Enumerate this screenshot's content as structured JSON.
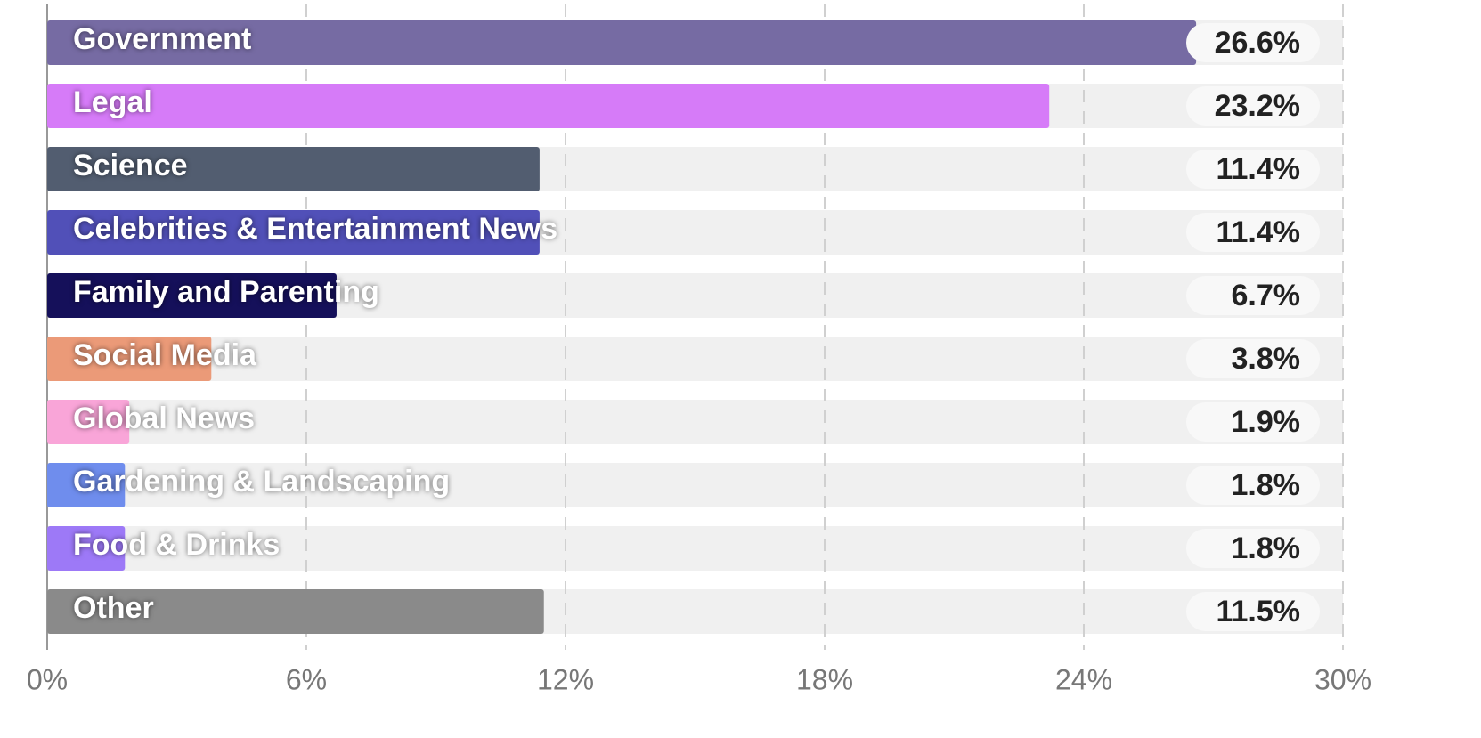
{
  "chart_data": {
    "type": "bar",
    "orientation": "horizontal",
    "categories": [
      "Government",
      "Legal",
      "Science",
      "Celebrities & Entertainment News",
      "Family and Parenting",
      "Social Media",
      "Global News",
      "Gardening & Landscaping",
      "Food & Drinks",
      "Other"
    ],
    "values": [
      26.6,
      23.2,
      11.4,
      11.4,
      6.7,
      3.8,
      1.9,
      1.8,
      1.8,
      11.5
    ],
    "value_labels": [
      "26.6%",
      "23.2%",
      "11.4%",
      "11.4%",
      "6.7%",
      "3.8%",
      "1.9%",
      "1.8%",
      "1.8%",
      "11.5%"
    ],
    "colors": [
      "#766ba3",
      "#d67bf8",
      "#525d70",
      "#5150b8",
      "#15105a",
      "#eb9a78",
      "#f9a5d8",
      "#6f8ded",
      "#9d79f7",
      "#8a8a8a"
    ],
    "xlim": [
      0,
      30
    ],
    "xticks": [
      {
        "value": 0,
        "label": "0%"
      },
      {
        "value": 6,
        "label": "6%"
      },
      {
        "value": 12,
        "label": "12%"
      },
      {
        "value": 18,
        "label": "18%"
      },
      {
        "value": 24,
        "label": "24%"
      },
      {
        "value": 30,
        "label": "30%"
      }
    ],
    "grid": true
  }
}
